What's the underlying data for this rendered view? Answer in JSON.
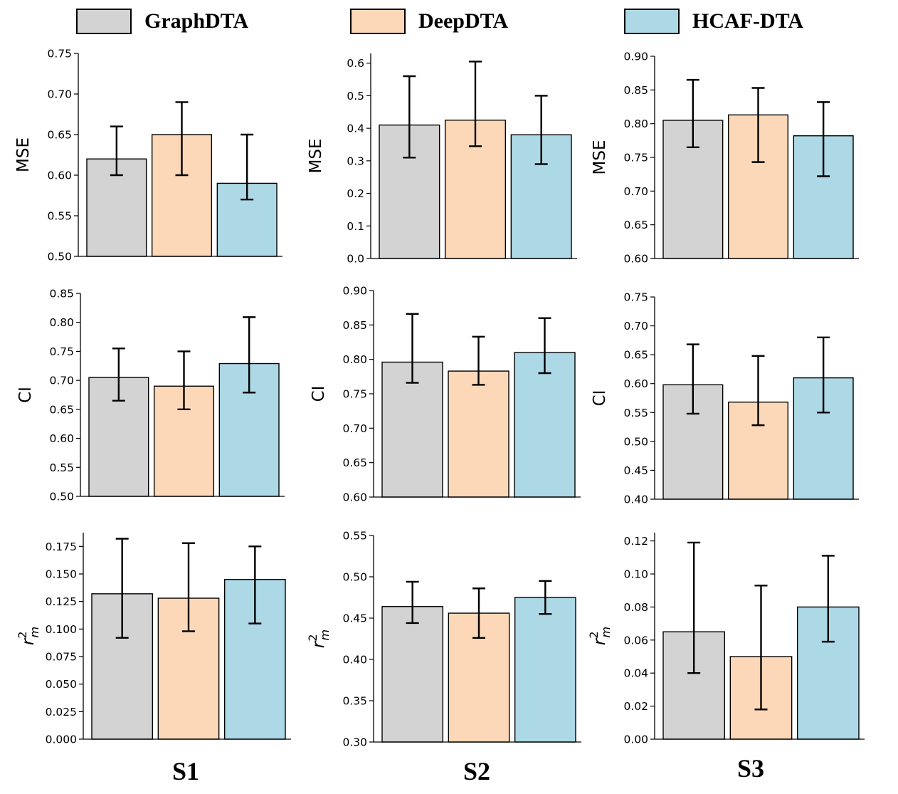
{
  "legend": [
    {
      "name": "GraphDTA",
      "color": "#d3d3d3"
    },
    {
      "name": "DeepDTA",
      "color": "#fcd8b8"
    },
    {
      "name": "HCAF-DTA",
      "color": "#add8e6"
    }
  ],
  "columns": [
    "S1",
    "S2",
    "S3"
  ],
  "chart_data": [
    {
      "id": "s1-mse",
      "type": "bar",
      "setting": "S1",
      "ylabel": "MSE",
      "ylim": [
        0.5,
        0.75
      ],
      "ticks": [
        "0.50",
        "0.55",
        "0.60",
        "0.65",
        "0.70",
        "0.75"
      ],
      "categories": [
        "GraphDTA",
        "DeepDTA",
        "HCAF-DTA"
      ],
      "values": [
        0.62,
        0.65,
        0.59
      ],
      "err_low": [
        0.6,
        0.6,
        0.57
      ],
      "err_high": [
        0.66,
        0.69,
        0.65
      ]
    },
    {
      "id": "s2-mse",
      "type": "bar",
      "setting": "S2",
      "ylabel": "MSE",
      "ylim": [
        0.0,
        0.63
      ],
      "ticks": [
        "0.0",
        "0.1",
        "0.2",
        "0.3",
        "0.4",
        "0.5",
        "0.6"
      ],
      "categories": [
        "GraphDTA",
        "DeepDTA",
        "HCAF-DTA"
      ],
      "values": [
        0.41,
        0.425,
        0.38
      ],
      "err_low": [
        0.31,
        0.345,
        0.29
      ],
      "err_high": [
        0.56,
        0.605,
        0.5
      ]
    },
    {
      "id": "s3-mse",
      "type": "bar",
      "setting": "S3",
      "ylabel": "MSE",
      "ylim": [
        0.6,
        0.9
      ],
      "ticks": [
        "0.60",
        "0.65",
        "0.70",
        "0.75",
        "0.80",
        "0.85",
        "0.90"
      ],
      "categories": [
        "GraphDTA",
        "DeepDTA",
        "HCAF-DTA"
      ],
      "values": [
        0.805,
        0.813,
        0.782
      ],
      "err_low": [
        0.765,
        0.743,
        0.722
      ],
      "err_high": [
        0.865,
        0.853,
        0.832
      ]
    },
    {
      "id": "s1-ci",
      "type": "bar",
      "setting": "S1",
      "ylabel": "CI",
      "ylim": [
        0.5,
        0.85
      ],
      "ticks": [
        "0.50",
        "0.55",
        "0.60",
        "0.65",
        "0.70",
        "0.75",
        "0.80",
        "0.85"
      ],
      "categories": [
        "GraphDTA",
        "DeepDTA",
        "HCAF-DTA"
      ],
      "values": [
        0.705,
        0.69,
        0.729
      ],
      "err_low": [
        0.665,
        0.65,
        0.679
      ],
      "err_high": [
        0.755,
        0.75,
        0.809
      ]
    },
    {
      "id": "s2-ci",
      "type": "bar",
      "setting": "S2",
      "ylabel": "CI",
      "ylim": [
        0.6,
        0.9
      ],
      "ticks": [
        "0.60",
        "0.65",
        "0.70",
        "0.75",
        "0.80",
        "0.85",
        "0.90"
      ],
      "categories": [
        "GraphDTA",
        "DeepDTA",
        "HCAF-DTA"
      ],
      "values": [
        0.796,
        0.783,
        0.81
      ],
      "err_low": [
        0.766,
        0.763,
        0.78
      ],
      "err_high": [
        0.866,
        0.833,
        0.86
      ]
    },
    {
      "id": "s3-ci",
      "type": "bar",
      "setting": "S3",
      "ylabel": "CI",
      "ylim": [
        0.4,
        0.75
      ],
      "ticks": [
        "0.40",
        "0.45",
        "0.50",
        "0.55",
        "0.60",
        "0.65",
        "0.70",
        "0.75"
      ],
      "categories": [
        "GraphDTA",
        "DeepDTA",
        "HCAF-DTA"
      ],
      "values": [
        0.598,
        0.568,
        0.61
      ],
      "err_low": [
        0.548,
        0.528,
        0.55
      ],
      "err_high": [
        0.668,
        0.648,
        0.68
      ]
    },
    {
      "id": "s1-rm2",
      "type": "bar",
      "setting": "S1",
      "ylabel": "r_m^2",
      "ylim": [
        0.0,
        0.1875
      ],
      "ticks": [
        "0.000",
        "0.025",
        "0.050",
        "0.075",
        "0.100",
        "0.125",
        "0.150",
        "0.175"
      ],
      "categories": [
        "GraphDTA",
        "DeepDTA",
        "HCAF-DTA"
      ],
      "values": [
        0.132,
        0.128,
        0.145
      ],
      "err_low": [
        0.092,
        0.098,
        0.105
      ],
      "err_high": [
        0.182,
        0.178,
        0.175
      ]
    },
    {
      "id": "s2-rm2",
      "type": "bar",
      "setting": "S2",
      "ylabel": "r_m^2",
      "ylim": [
        0.3,
        0.55
      ],
      "ticks": [
        "0.30",
        "0.35",
        "0.40",
        "0.45",
        "0.50",
        "0.55"
      ],
      "categories": [
        "GraphDTA",
        "DeepDTA",
        "HCAF-DTA"
      ],
      "values": [
        0.464,
        0.456,
        0.475
      ],
      "err_low": [
        0.444,
        0.426,
        0.455
      ],
      "err_high": [
        0.494,
        0.486,
        0.495
      ]
    },
    {
      "id": "s3-rm2",
      "type": "bar",
      "setting": "S3",
      "ylabel": "r_m^2",
      "ylim": [
        0.0,
        0.125
      ],
      "ticks": [
        "0.00",
        "0.02",
        "0.04",
        "0.06",
        "0.08",
        "0.10",
        "0.12"
      ],
      "categories": [
        "GraphDTA",
        "DeepDTA",
        "HCAF-DTA"
      ],
      "values": [
        0.065,
        0.05,
        0.08
      ],
      "err_low": [
        0.04,
        0.018,
        0.059
      ],
      "err_high": [
        0.119,
        0.093,
        0.111
      ]
    }
  ]
}
